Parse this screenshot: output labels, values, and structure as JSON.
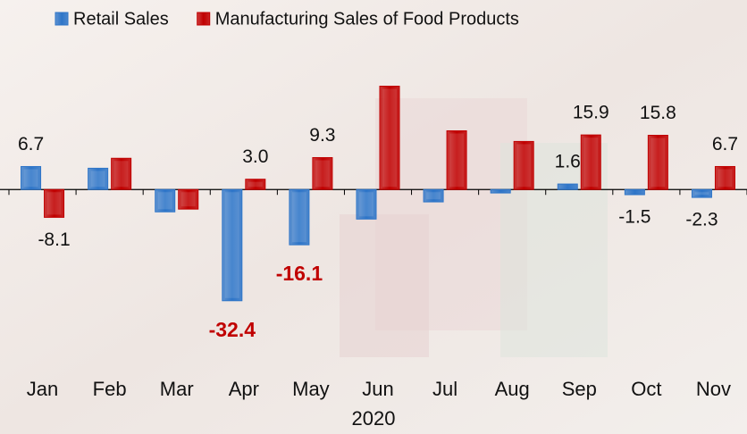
{
  "chart_data": {
    "type": "bar",
    "x_label": "2020",
    "categories": [
      "Jan",
      "Feb",
      "Mar",
      "Apr",
      "May",
      "Jun",
      "Jul",
      "Aug",
      "Sep",
      "Oct",
      "Nov"
    ],
    "series": [
      {
        "name": "Retail Sales",
        "color": "#2e75c8",
        "values": [
          6.7,
          6.2,
          -6.5,
          -32.4,
          -16.1,
          -8.6,
          -3.6,
          -1.0,
          1.6,
          -1.5,
          -2.3
        ],
        "value_labels": [
          "6.7",
          null,
          null,
          "-32.4",
          "-16.1",
          null,
          null,
          null,
          "1.6",
          "-1.5",
          "-2.3"
        ]
      },
      {
        "name": "Manufacturing Sales of Food Products",
        "color": "#c00000",
        "values": [
          -8.1,
          9.1,
          -5.7,
          3.0,
          9.3,
          30.1,
          17.1,
          14.0,
          15.9,
          15.8,
          6.7
        ],
        "value_labels": [
          "-8.1",
          null,
          null,
          "3.0",
          "9.3",
          null,
          null,
          null,
          "15.9",
          "15.8",
          "6.7"
        ]
      }
    ],
    "label_highlight": {
      "color": "#c00000",
      "series": 0,
      "indices": [
        3,
        4
      ]
    },
    "ylim": [
      -40,
      37
    ],
    "legend": "top"
  }
}
